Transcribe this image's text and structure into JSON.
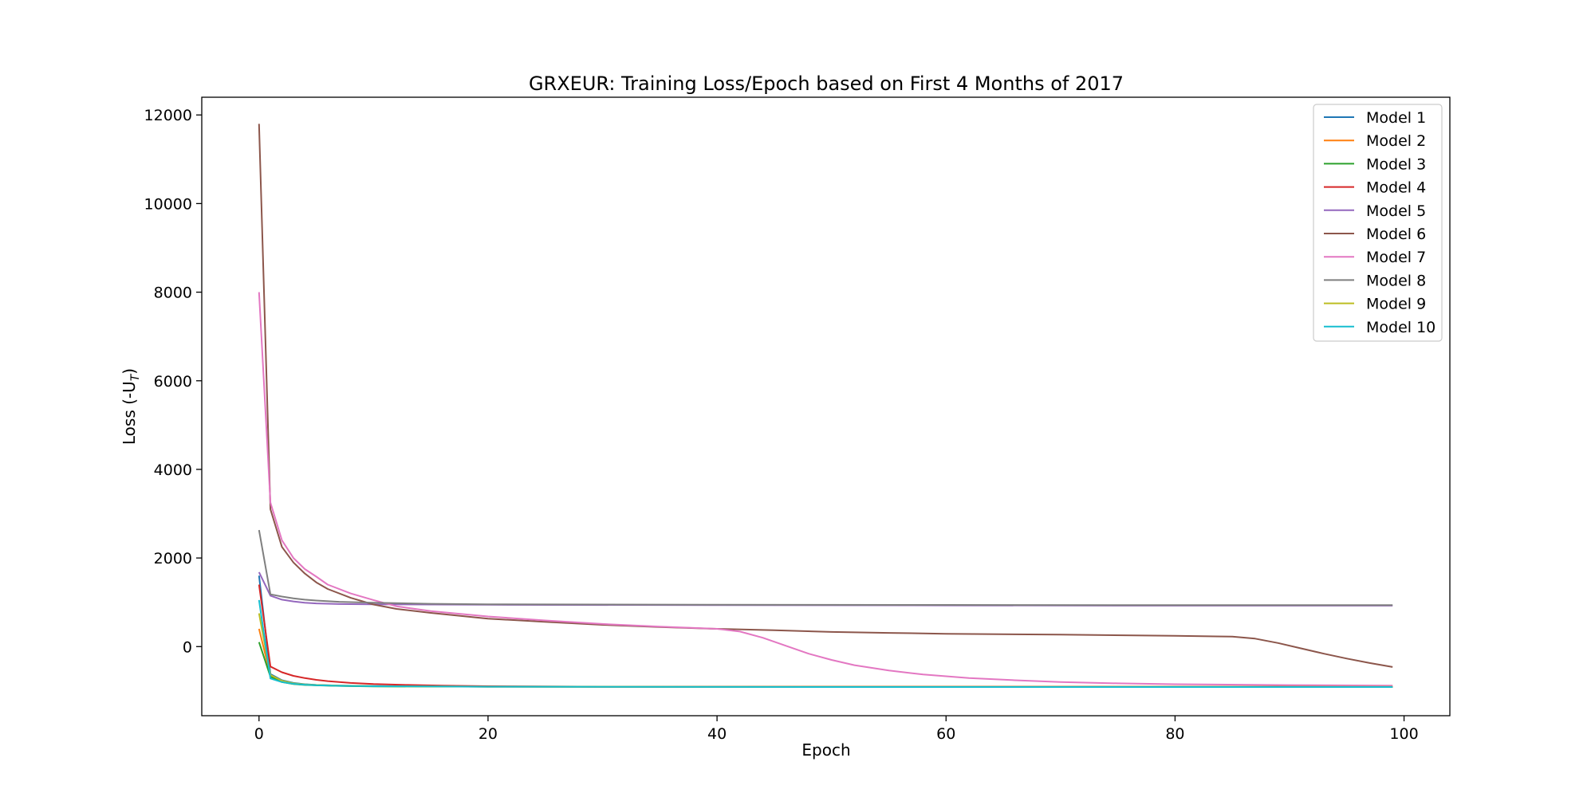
{
  "chart_data": {
    "type": "line",
    "title": "GRXEUR: Training Loss/Epoch based on First 4 Months of 2017",
    "xlabel": "Epoch",
    "ylabel_main": "Loss (-U",
    "ylabel_sub": "T",
    "ylabel_close": ")",
    "xlim": [
      -5,
      104
    ],
    "ylim": [
      -1560,
      12400
    ],
    "xticks": [
      0,
      20,
      40,
      60,
      80,
      100
    ],
    "yticks": [
      0,
      2000,
      4000,
      6000,
      8000,
      10000,
      12000
    ],
    "grid": false,
    "legend_position": "top-right",
    "series": [
      {
        "name": "Model 1",
        "color": "#1f77b4",
        "points": [
          [
            0,
            1600
          ],
          [
            1,
            -620
          ],
          [
            2,
            -760
          ],
          [
            3,
            -820
          ],
          [
            4,
            -850
          ],
          [
            5,
            -865
          ],
          [
            7,
            -880
          ],
          [
            10,
            -890
          ],
          [
            20,
            -900
          ],
          [
            40,
            -905
          ],
          [
            60,
            -905
          ],
          [
            80,
            -905
          ],
          [
            99,
            -905
          ]
        ]
      },
      {
        "name": "Model 2",
        "color": "#ff7f0e",
        "points": [
          [
            0,
            400
          ],
          [
            1,
            -650
          ],
          [
            2,
            -790
          ],
          [
            3,
            -840
          ],
          [
            4,
            -860
          ],
          [
            5,
            -870
          ],
          [
            7,
            -885
          ],
          [
            10,
            -895
          ],
          [
            20,
            -905
          ],
          [
            40,
            -910
          ],
          [
            60,
            -910
          ],
          [
            80,
            -910
          ],
          [
            99,
            -910
          ]
        ]
      },
      {
        "name": "Model 3",
        "color": "#2ca02c",
        "points": [
          [
            0,
            100
          ],
          [
            1,
            -680
          ],
          [
            2,
            -800
          ],
          [
            3,
            -845
          ],
          [
            4,
            -865
          ],
          [
            5,
            -875
          ],
          [
            7,
            -888
          ],
          [
            10,
            -898
          ],
          [
            20,
            -906
          ],
          [
            40,
            -910
          ],
          [
            60,
            -912
          ],
          [
            80,
            -912
          ],
          [
            99,
            -912
          ]
        ]
      },
      {
        "name": "Model 4",
        "color": "#d62728",
        "points": [
          [
            0,
            1400
          ],
          [
            1,
            -450
          ],
          [
            2,
            -580
          ],
          [
            3,
            -660
          ],
          [
            4,
            -710
          ],
          [
            5,
            -750
          ],
          [
            6,
            -780
          ],
          [
            8,
            -820
          ],
          [
            10,
            -845
          ],
          [
            13,
            -865
          ],
          [
            16,
            -880
          ],
          [
            20,
            -895
          ],
          [
            30,
            -905
          ],
          [
            40,
            -905
          ],
          [
            60,
            -905
          ],
          [
            80,
            -905
          ],
          [
            99,
            -905
          ]
        ]
      },
      {
        "name": "Model 5",
        "color": "#9467bd",
        "points": [
          [
            0,
            1680
          ],
          [
            1,
            1150
          ],
          [
            2,
            1060
          ],
          [
            3,
            1020
          ],
          [
            4,
            990
          ],
          [
            5,
            975
          ],
          [
            7,
            960
          ],
          [
            10,
            955
          ],
          [
            20,
            945
          ],
          [
            40,
            935
          ],
          [
            60,
            930
          ],
          [
            80,
            925
          ],
          [
            99,
            925
          ]
        ]
      },
      {
        "name": "Model 6",
        "color": "#8c564b",
        "points": [
          [
            0,
            11800
          ],
          [
            1,
            3100
          ],
          [
            2,
            2250
          ],
          [
            3,
            1900
          ],
          [
            4,
            1650
          ],
          [
            5,
            1450
          ],
          [
            6,
            1300
          ],
          [
            8,
            1100
          ],
          [
            10,
            950
          ],
          [
            12,
            850
          ],
          [
            15,
            760
          ],
          [
            20,
            630
          ],
          [
            25,
            560
          ],
          [
            30,
            490
          ],
          [
            35,
            440
          ],
          [
            40,
            400
          ],
          [
            45,
            370
          ],
          [
            50,
            330
          ],
          [
            55,
            310
          ],
          [
            60,
            290
          ],
          [
            70,
            270
          ],
          [
            80,
            245
          ],
          [
            85,
            225
          ],
          [
            87,
            180
          ],
          [
            89,
            80
          ],
          [
            91,
            -40
          ],
          [
            93,
            -160
          ],
          [
            95,
            -270
          ],
          [
            97,
            -370
          ],
          [
            99,
            -460
          ]
        ]
      },
      {
        "name": "Model 7",
        "color": "#e377c2",
        "points": [
          [
            0,
            8000
          ],
          [
            1,
            3250
          ],
          [
            2,
            2400
          ],
          [
            3,
            2000
          ],
          [
            4,
            1750
          ],
          [
            5,
            1580
          ],
          [
            6,
            1400
          ],
          [
            8,
            1200
          ],
          [
            10,
            1050
          ],
          [
            12,
            910
          ],
          [
            15,
            800
          ],
          [
            20,
            680
          ],
          [
            25,
            590
          ],
          [
            30,
            510
          ],
          [
            35,
            450
          ],
          [
            40,
            400
          ],
          [
            42,
            340
          ],
          [
            44,
            200
          ],
          [
            46,
            20
          ],
          [
            48,
            -160
          ],
          [
            50,
            -300
          ],
          [
            52,
            -420
          ],
          [
            55,
            -540
          ],
          [
            58,
            -630
          ],
          [
            62,
            -710
          ],
          [
            66,
            -760
          ],
          [
            70,
            -800
          ],
          [
            75,
            -830
          ],
          [
            80,
            -850
          ],
          [
            90,
            -870
          ],
          [
            99,
            -880
          ]
        ]
      },
      {
        "name": "Model 8",
        "color": "#7f7f7f",
        "points": [
          [
            0,
            2630
          ],
          [
            1,
            1180
          ],
          [
            2,
            1130
          ],
          [
            3,
            1090
          ],
          [
            4,
            1060
          ],
          [
            5,
            1040
          ],
          [
            7,
            1010
          ],
          [
            10,
            990
          ],
          [
            15,
            965
          ],
          [
            20,
            955
          ],
          [
            40,
            945
          ],
          [
            60,
            940
          ],
          [
            80,
            935
          ],
          [
            99,
            935
          ]
        ]
      },
      {
        "name": "Model 9",
        "color": "#bcbd22",
        "points": [
          [
            0,
            750
          ],
          [
            1,
            -640
          ],
          [
            2,
            -770
          ],
          [
            3,
            -830
          ],
          [
            4,
            -855
          ],
          [
            5,
            -868
          ],
          [
            7,
            -882
          ],
          [
            10,
            -893
          ],
          [
            20,
            -903
          ],
          [
            40,
            -908
          ],
          [
            60,
            -908
          ],
          [
            80,
            -908
          ],
          [
            99,
            -908
          ]
        ]
      },
      {
        "name": "Model 10",
        "color": "#17becf",
        "points": [
          [
            0,
            1050
          ],
          [
            1,
            -720
          ],
          [
            2,
            -800
          ],
          [
            3,
            -840
          ],
          [
            4,
            -860
          ],
          [
            5,
            -872
          ],
          [
            7,
            -885
          ],
          [
            10,
            -895
          ],
          [
            20,
            -905
          ],
          [
            40,
            -910
          ],
          [
            60,
            -912
          ],
          [
            80,
            -912
          ],
          [
            99,
            -912
          ]
        ]
      }
    ]
  }
}
